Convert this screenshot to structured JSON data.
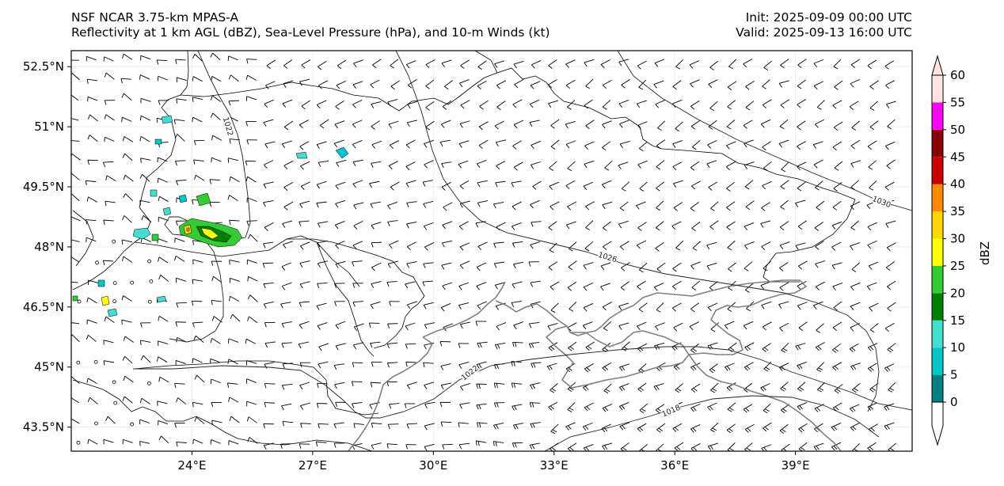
{
  "header": {
    "model": "NSF NCAR 3.75-km MPAS-A",
    "fields": "Reflectivity at 1 km AGL (dBZ), Sea-Level Pressure (hPa), and 10-m Winds (kt)",
    "init": "Init: 2025-09-09 00:00 UTC",
    "valid": "Valid: 2025-09-13 16:00 UTC"
  },
  "map": {
    "lon_range": [
      21.0,
      41.9
    ],
    "lat_range": [
      42.9,
      52.9
    ],
    "lat_ticks": [
      {
        "value": 52.5,
        "label": "52.5°N"
      },
      {
        "value": 51.0,
        "label": "51°N"
      },
      {
        "value": 49.5,
        "label": "49.5°N"
      },
      {
        "value": 48.0,
        "label": "48°N"
      },
      {
        "value": 46.5,
        "label": "46.5°N"
      },
      {
        "value": 45.0,
        "label": "45°N"
      },
      {
        "value": 43.5,
        "label": "43.5°N"
      }
    ],
    "lon_ticks": [
      {
        "value": 24,
        "label": "24°E"
      },
      {
        "value": 27,
        "label": "27°E"
      },
      {
        "value": 30,
        "label": "30°E"
      },
      {
        "value": 33,
        "label": "33°E"
      },
      {
        "value": 36,
        "label": "36°E"
      },
      {
        "value": 39,
        "label": "39°E"
      }
    ],
    "isobars": [
      {
        "label": "1022",
        "value": 1022
      },
      {
        "label": "1026",
        "value": 1026
      },
      {
        "label": "1030",
        "value": 1030
      },
      {
        "label": "1022",
        "value": 1022
      },
      {
        "label": "1018",
        "value": 1018
      }
    ],
    "colors": {
      "border": "#000000",
      "coast": "#808080",
      "isobar": "#222222",
      "grid": "#eeeeee"
    }
  },
  "colorbar": {
    "label": "dBZ",
    "ticks": [
      "0",
      "5",
      "10",
      "15",
      "20",
      "25",
      "30",
      "35",
      "40",
      "45",
      "50",
      "55",
      "60"
    ],
    "colors": [
      "#008080",
      "#00c8c8",
      "#40e0d0",
      "#008000",
      "#32cd32",
      "#ffff00",
      "#ffd700",
      "#ff8c00",
      "#cc0000",
      "#8b0000",
      "#ff00ff",
      "#ffe4e1"
    ]
  }
}
